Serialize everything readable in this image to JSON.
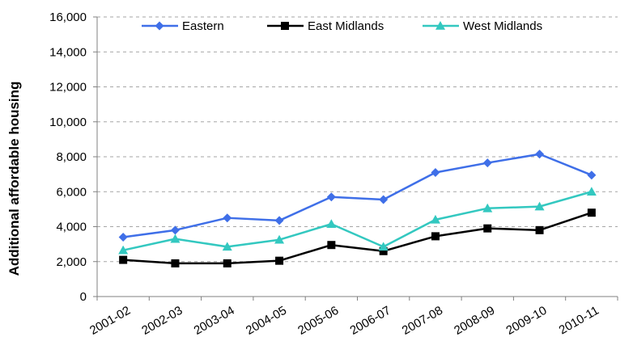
{
  "chart_data": {
    "type": "line",
    "ylabel": "Additional affordable housing",
    "xlabel": "",
    "title": "",
    "categories": [
      "2001-02",
      "2002-03",
      "2003-04",
      "2004-05",
      "2005-06",
      "2006-07",
      "2007-08",
      "2008-09",
      "2009-10",
      "2010-11"
    ],
    "ylim": [
      0,
      16000
    ],
    "yticks": [
      "0",
      "2,000",
      "4,000",
      "6,000",
      "8,000",
      "10,000",
      "12,000",
      "14,000",
      "16,000"
    ],
    "grid": "horizontal dashed",
    "legend_position": "top",
    "series": [
      {
        "name": "Eastern",
        "color": "#3f6fe8",
        "marker": "diamond",
        "values": [
          3400,
          3800,
          4500,
          4350,
          5700,
          5550,
          7100,
          7650,
          8150,
          6950
        ]
      },
      {
        "name": "East Midlands",
        "color": "#000000",
        "marker": "square",
        "values": [
          2100,
          1900,
          1900,
          2050,
          2950,
          2600,
          3450,
          3900,
          3800,
          4800
        ]
      },
      {
        "name": "West Midlands",
        "color": "#33c8c0",
        "marker": "triangle",
        "values": [
          2650,
          3300,
          2850,
          3250,
          4150,
          2850,
          4400,
          5050,
          5150,
          6000
        ]
      }
    ]
  }
}
